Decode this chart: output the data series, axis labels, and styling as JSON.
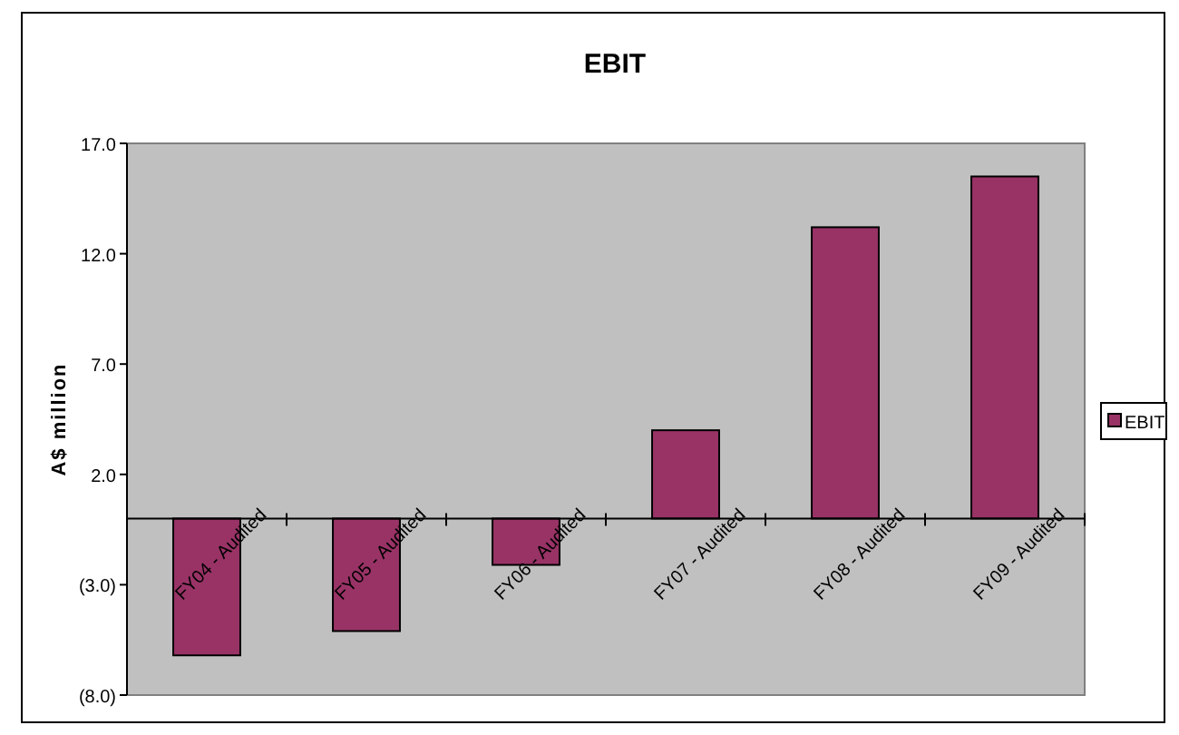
{
  "chart_data": {
    "type": "bar",
    "title": "EBIT",
    "ylabel": "A$ million",
    "categories": [
      "FY04 - Audited",
      "FY05 - Audited",
      "FY06 - Audited",
      "FY07 - Audited",
      "FY08 - Audited",
      "FY09 - Audited"
    ],
    "series": [
      {
        "name": "EBIT",
        "color": "#993366",
        "values": [
          -6.2,
          -5.1,
          -2.1,
          4.0,
          13.2,
          15.5
        ]
      }
    ],
    "ylim": [
      -8,
      17
    ],
    "yticks": [
      {
        "value": -8,
        "label": "(8.0)"
      },
      {
        "value": -3,
        "label": "(3.0)"
      },
      {
        "value": 2,
        "label": "2.0"
      },
      {
        "value": 7,
        "label": "7.0"
      },
      {
        "value": 12,
        "label": "12.0"
      },
      {
        "value": 17,
        "label": "17.0"
      }
    ],
    "grid": false,
    "legend": "right"
  }
}
